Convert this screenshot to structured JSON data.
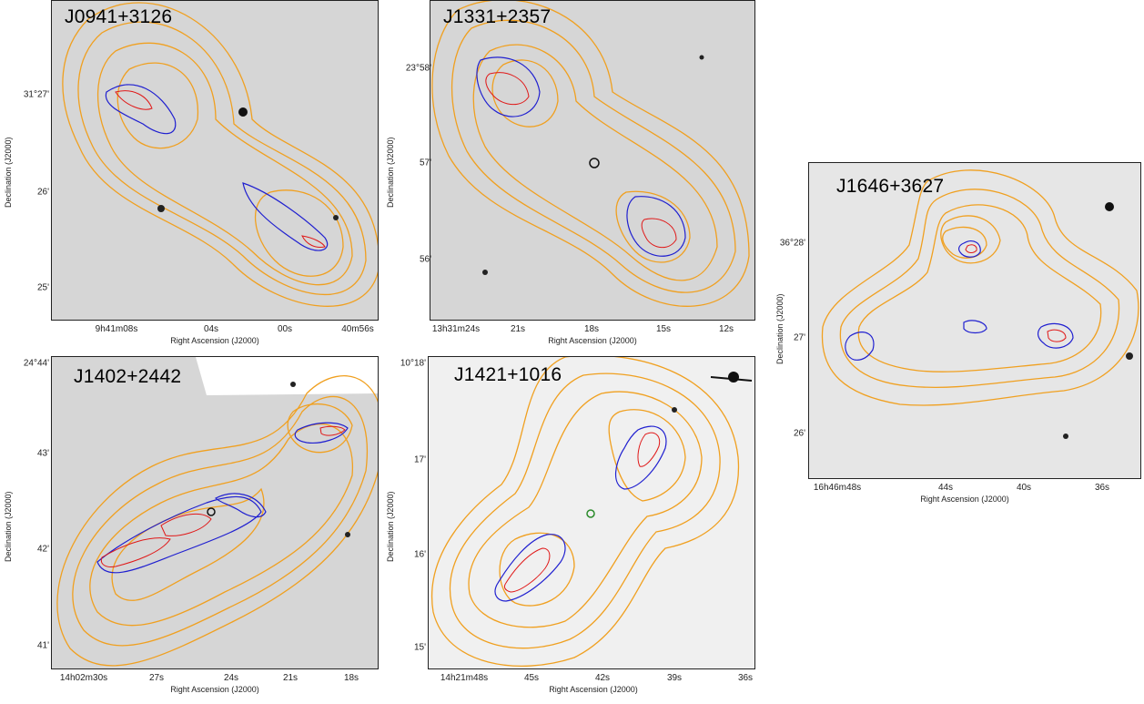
{
  "figure": {
    "x_axis_label": "Right Ascension (J2000)",
    "y_axis_label": "Declination (J2000)",
    "contour_colors": {
      "optical_background": "#cfcfcf",
      "lowres_radio": "#f0a020",
      "highres_radio": "#2020d0",
      "highest_res_radio": "#e01818"
    }
  },
  "panels": [
    {
      "name": "J0941+3126",
      "x_ticks": [
        "9h41m08s",
        "04s",
        "00s",
        "40m56s"
      ],
      "y_ticks": [
        "31°27'",
        "26'",
        "25'"
      ]
    },
    {
      "name": "J1331+2357",
      "x_ticks": [
        "13h31m24s",
        "21s",
        "18s",
        "15s",
        "12s"
      ],
      "y_ticks": [
        "23°58'",
        "57'",
        "56'"
      ]
    },
    {
      "name": "J1646+3627",
      "x_ticks": [
        "16h46m48s",
        "44s",
        "40s",
        "36s"
      ],
      "y_ticks": [
        "36°28'",
        "27'",
        "26'"
      ]
    },
    {
      "name": "J1402+2442",
      "x_ticks": [
        "14h02m30s",
        "27s",
        "24s",
        "21s",
        "18s"
      ],
      "y_ticks": [
        "24°44'",
        "43'",
        "42'",
        "41'"
      ]
    },
    {
      "name": "J1421+1016",
      "x_ticks": [
        "14h21m48s",
        "45s",
        "42s",
        "39s",
        "36s"
      ],
      "y_ticks": [
        "10°18'",
        "17'",
        "16'",
        "15'"
      ]
    }
  ]
}
